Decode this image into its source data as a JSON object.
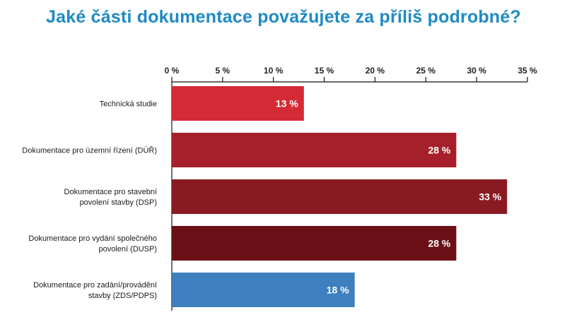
{
  "title": "Jaké části dokumentace považujete za příliš podrobné?",
  "chart_data": {
    "type": "bar",
    "orientation": "horizontal",
    "title": "Jaké části dokumentace považujete za příliš podrobné?",
    "xlabel": "",
    "ylabel": "",
    "xlim": [
      0,
      35
    ],
    "ticks": [
      0,
      5,
      10,
      15,
      20,
      25,
      30,
      35
    ],
    "tick_labels": [
      "0 %",
      "5 %",
      "10 %",
      "15 %",
      "20 %",
      "25 %",
      "30 %",
      "35 %"
    ],
    "axis_position": "top",
    "grid": false,
    "categories": [
      [
        "Technická studie"
      ],
      [
        "Dokumentace pro územní řízení (DÚŘ)"
      ],
      [
        "Dokumentace pro stavební",
        "povolení stavby (DSP)"
      ],
      [
        "Dokumentace pro vydání společného",
        "povolení (DUSP)"
      ],
      [
        "Dokumentace pro zadání/provádění",
        "stavby (ZDS/PDPS)"
      ]
    ],
    "values": [
      13,
      28,
      33,
      28,
      18
    ],
    "value_labels": [
      "13 %",
      "28 %",
      "33 %",
      "28 %",
      "18 %"
    ],
    "colors": [
      "#d42a35",
      "#a5202b",
      "#8a1a22",
      "#6a1016",
      "#3d7fbf"
    ]
  }
}
